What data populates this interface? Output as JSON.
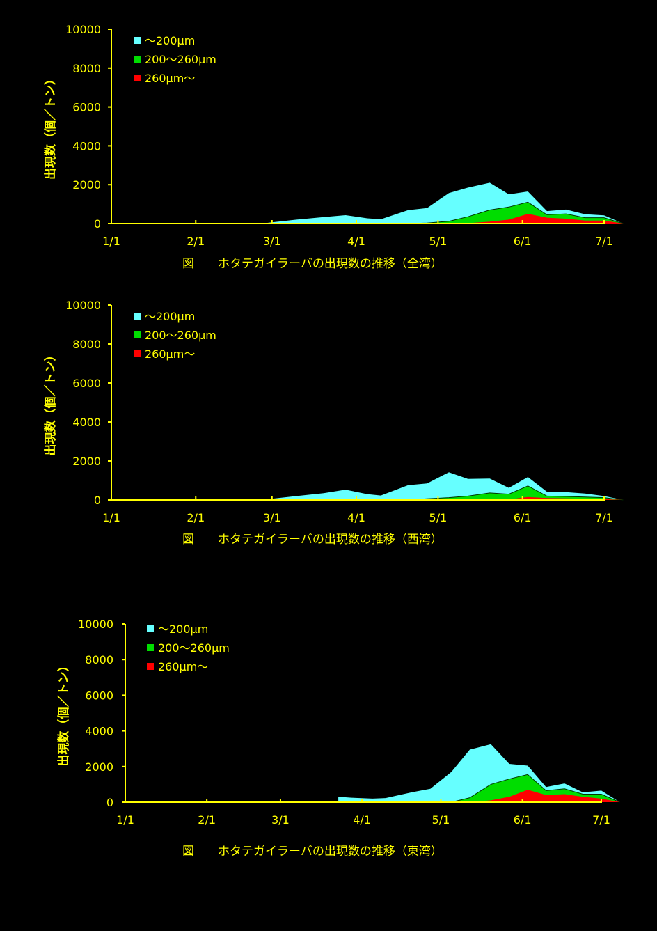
{
  "colors": {
    "axis": "#ffff00",
    "series": [
      "#66ffff",
      "#00dd00",
      "#ff0000"
    ],
    "background": "#000000"
  },
  "chart_data": [
    {
      "type": "area",
      "stacking": "overlapping",
      "caption": "図　　ホタテガイラーバの出現数の推移（全湾）",
      "ylabel": "出現数（個／トン）",
      "xlabel": "",
      "ylim": [
        0,
        10000
      ],
      "y_ticks": [
        "0",
        "2000",
        "4000",
        "6000",
        "8000",
        "10000"
      ],
      "x_ticks": [
        "1/1",
        "2/1",
        "3/1",
        "4/1",
        "5/1",
        "6/1",
        "7/1"
      ],
      "xlim": [
        "1/1",
        "7/1"
      ],
      "legend": "top-left",
      "series": [
        {
          "name": "～200μm",
          "points": [
            [
              "2/25",
              0
            ],
            [
              "3/1",
              60
            ],
            [
              "3/10",
              200
            ],
            [
              "3/20",
              330
            ],
            [
              "3/28",
              430
            ],
            [
              "4/5",
              270
            ],
            [
              "4/10",
              220
            ],
            [
              "4/20",
              690
            ],
            [
              "4/27",
              800
            ],
            [
              "5/5",
              1570
            ],
            [
              "5/12",
              1850
            ],
            [
              "5/20",
              2100
            ],
            [
              "5/27",
              1500
            ],
            [
              "6/3",
              1650
            ],
            [
              "6/10",
              640
            ],
            [
              "6/17",
              720
            ],
            [
              "6/24",
              480
            ],
            [
              "7/1",
              420
            ],
            [
              "7/8",
              0
            ]
          ]
        },
        {
          "name": "200～260μm",
          "points": [
            [
              "4/20",
              0
            ],
            [
              "4/27",
              30
            ],
            [
              "5/5",
              120
            ],
            [
              "5/12",
              350
            ],
            [
              "5/20",
              700
            ],
            [
              "5/27",
              850
            ],
            [
              "6/3",
              1100
            ],
            [
              "6/10",
              450
            ],
            [
              "6/17",
              500
            ],
            [
              "6/24",
              300
            ],
            [
              "7/1",
              300
            ],
            [
              "7/8",
              0
            ]
          ]
        },
        {
          "name": "260μm～",
          "points": [
            [
              "5/10",
              0
            ],
            [
              "5/20",
              100
            ],
            [
              "5/27",
              200
            ],
            [
              "6/3",
              500
            ],
            [
              "6/10",
              300
            ],
            [
              "6/17",
              250
            ],
            [
              "6/24",
              150
            ],
            [
              "7/1",
              150
            ],
            [
              "7/8",
              0
            ]
          ]
        }
      ]
    },
    {
      "type": "area",
      "stacking": "overlapping",
      "caption": "図　　ホタテガイラーバの出現数の推移（西湾）",
      "ylabel": "出現数（個／トン）",
      "xlabel": "",
      "ylim": [
        0,
        10000
      ],
      "y_ticks": [
        "0",
        "2000",
        "4000",
        "6000",
        "8000",
        "10000"
      ],
      "x_ticks": [
        "1/1",
        "2/1",
        "3/1",
        "4/1",
        "5/1",
        "6/1",
        "7/1"
      ],
      "xlim": [
        "1/1",
        "7/1"
      ],
      "legend": "top-left",
      "series": [
        {
          "name": "～200μm",
          "points": [
            [
              "2/20",
              0
            ],
            [
              "3/1",
              60
            ],
            [
              "3/10",
              200
            ],
            [
              "3/20",
              350
            ],
            [
              "3/28",
              530
            ],
            [
              "4/5",
              300
            ],
            [
              "4/10",
              230
            ],
            [
              "4/20",
              760
            ],
            [
              "4/27",
              850
            ],
            [
              "5/5",
              1420
            ],
            [
              "5/12",
              1080
            ],
            [
              "5/20",
              1100
            ],
            [
              "5/27",
              620
            ],
            [
              "6/3",
              1180
            ],
            [
              "6/10",
              420
            ],
            [
              "6/17",
              400
            ],
            [
              "6/24",
              330
            ],
            [
              "7/1",
              200
            ],
            [
              "7/8",
              0
            ]
          ]
        },
        {
          "name": "200～260μm",
          "points": [
            [
              "4/20",
              0
            ],
            [
              "4/27",
              60
            ],
            [
              "5/5",
              120
            ],
            [
              "5/12",
              200
            ],
            [
              "5/20",
              360
            ],
            [
              "5/27",
              300
            ],
            [
              "6/3",
              720
            ],
            [
              "6/10",
              200
            ],
            [
              "6/17",
              180
            ],
            [
              "6/24",
              150
            ],
            [
              "7/1",
              120
            ],
            [
              "7/8",
              0
            ]
          ]
        },
        {
          "name": "260μm～",
          "points": [
            [
              "5/20",
              0
            ],
            [
              "5/27",
              30
            ],
            [
              "6/3",
              150
            ],
            [
              "6/10",
              100
            ],
            [
              "6/17",
              80
            ],
            [
              "6/24",
              60
            ],
            [
              "7/1",
              40
            ],
            [
              "7/8",
              0
            ]
          ]
        }
      ]
    },
    {
      "type": "area",
      "stacking": "overlapping",
      "caption": "図　　ホタテガイラーバの出現数の推移（東湾）",
      "ylabel": "出現数（個／トン）",
      "xlabel": "",
      "ylim": [
        0,
        10000
      ],
      "y_ticks": [
        "0",
        "2000",
        "4000",
        "6000",
        "8000",
        "10000"
      ],
      "x_ticks": [
        "1/1",
        "2/1",
        "3/1",
        "4/1",
        "5/1",
        "6/1",
        "7/1"
      ],
      "xlim": [
        "1/1",
        "7/1"
      ],
      "legend": "top-left",
      "series": [
        {
          "name": "～200μm",
          "points": [
            [
              "3/23",
              0
            ],
            [
              "3/23",
              300
            ],
            [
              "3/28",
              250
            ],
            [
              "4/5",
              200
            ],
            [
              "4/10",
              230
            ],
            [
              "4/20",
              560
            ],
            [
              "4/27",
              750
            ],
            [
              "5/5",
              1700
            ],
            [
              "5/12",
              2950
            ],
            [
              "5/20",
              3250
            ],
            [
              "5/27",
              2150
            ],
            [
              "6/3",
              2050
            ],
            [
              "6/10",
              850
            ],
            [
              "6/17",
              1050
            ],
            [
              "6/24",
              550
            ],
            [
              "7/1",
              650
            ],
            [
              "7/8",
              0
            ]
          ]
        },
        {
          "name": "200～260μm",
          "points": [
            [
              "5/5",
              0
            ],
            [
              "5/12",
              250
            ],
            [
              "5/20",
              1000
            ],
            [
              "5/27",
              1300
            ],
            [
              "6/3",
              1550
            ],
            [
              "6/10",
              650
            ],
            [
              "6/17",
              750
            ],
            [
              "6/24",
              450
            ],
            [
              "7/1",
              450
            ],
            [
              "7/8",
              0
            ]
          ]
        },
        {
          "name": "260μm～",
          "points": [
            [
              "5/12",
              0
            ],
            [
              "5/20",
              100
            ],
            [
              "5/27",
              300
            ],
            [
              "6/3",
              700
            ],
            [
              "6/10",
              400
            ],
            [
              "6/17",
              450
            ],
            [
              "6/24",
              300
            ],
            [
              "7/1",
              200
            ],
            [
              "7/8",
              0
            ]
          ]
        }
      ]
    }
  ]
}
